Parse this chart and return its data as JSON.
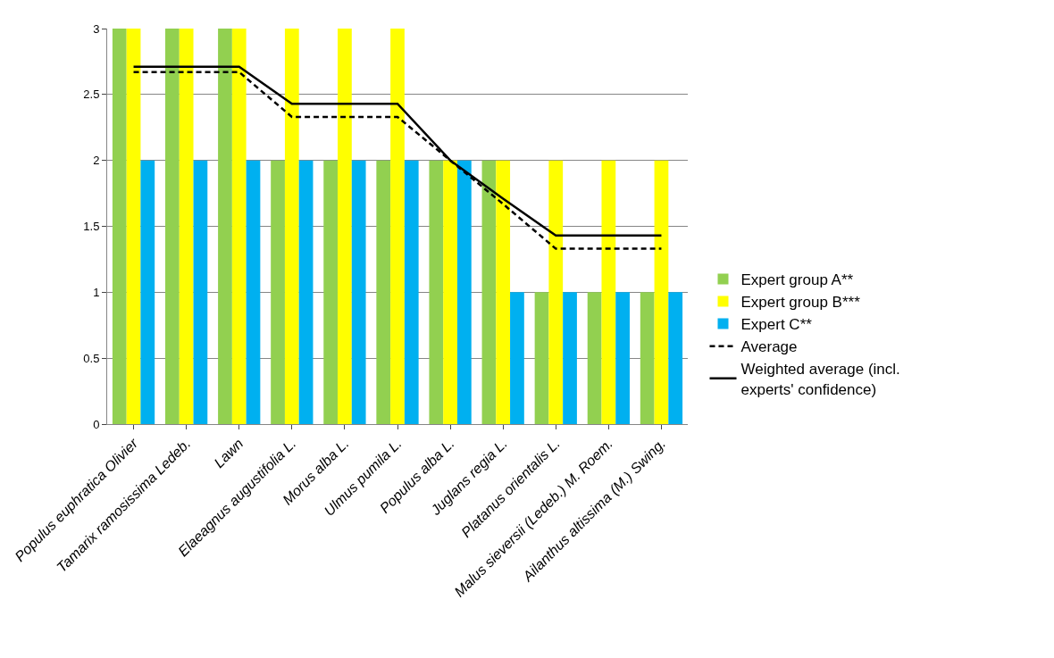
{
  "chart_data": {
    "type": "bar",
    "categories": [
      "Populus euphratica Olivier",
      "Tamarix ramosissima Ledeb.",
      "Lawn",
      "Elaeagnus augustifolia L.",
      "Morus alba L.",
      "Ulmus pumila L.",
      "Populus alba L.",
      "Juglans regia L.",
      "Platanus orientalis L.",
      "Malus sieversii (Ledeb.) M. Roem.",
      "Ailanthus altissima (M.) Swing."
    ],
    "series": [
      {
        "name": "Expert group A**",
        "color": "#92d050",
        "values": [
          3,
          3,
          3,
          2,
          2,
          2,
          2,
          2,
          1,
          1,
          1
        ]
      },
      {
        "name": "Expert group B***",
        "color": "#ffff00",
        "values": [
          3,
          3,
          3,
          3,
          3,
          3,
          2,
          2,
          2,
          2,
          2
        ]
      },
      {
        "name": "Expert C**",
        "color": "#00b0f0",
        "values": [
          2,
          2,
          2,
          2,
          2,
          2,
          2,
          1,
          1,
          1,
          1
        ]
      },
      {
        "name": "Average",
        "type": "line",
        "color": "#000000",
        "line_style": "dashed",
        "values": [
          2.67,
          2.67,
          2.67,
          2.33,
          2.33,
          2.33,
          2,
          1.67,
          1.33,
          1.33,
          1.33
        ]
      },
      {
        "name": "Weighted average (incl. experts' confidence)",
        "type": "line",
        "color": "#000000",
        "line_style": "solid",
        "values": [
          2.71,
          2.71,
          2.71,
          2.43,
          2.43,
          2.43,
          2,
          1.71,
          1.43,
          1.43,
          1.43
        ]
      }
    ],
    "ylim": [
      0,
      3
    ],
    "yticks": [
      0,
      0.5,
      1,
      1.5,
      2,
      2.5,
      3
    ],
    "grid": "y",
    "legend": "right",
    "marker": "none"
  }
}
